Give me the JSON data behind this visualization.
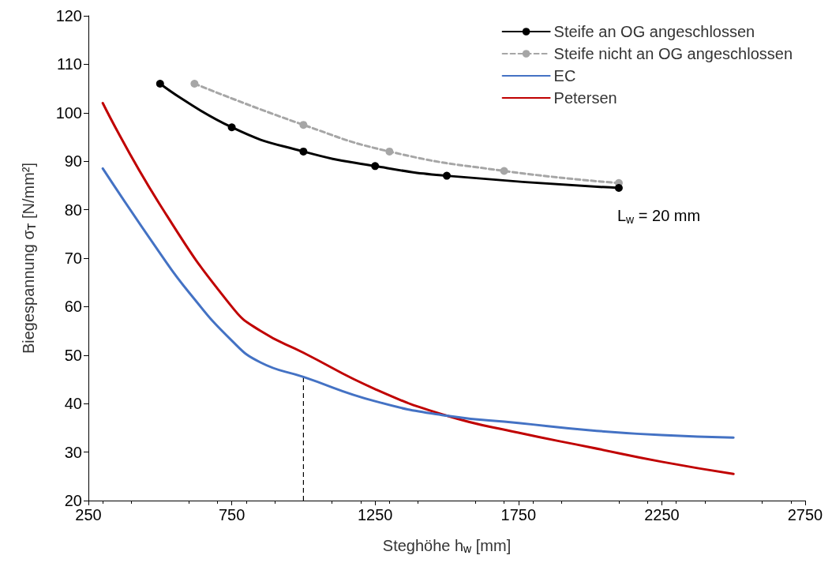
{
  "chart_data": {
    "type": "line",
    "xlabel": "Steghöhe h$_{w}$ [mm]",
    "ylabel": "Biegespannung σ$_{T}$ [N/mm²]",
    "xlim": [
      250,
      2750
    ],
    "xticks": [
      250,
      750,
      1250,
      1750,
      2250,
      2750
    ],
    "ylim": [
      20,
      120
    ],
    "yticks": [
      20,
      30,
      40,
      50,
      60,
      70,
      80,
      90,
      100,
      110,
      120
    ],
    "grid": false,
    "legend": "top right",
    "series": [
      {
        "name": "Steife an OG angeschlossen",
        "color": "#000000",
        "marker": "circle",
        "line_style": "solid",
        "x": [
          500,
          750,
          1000,
          1250,
          1500,
          2100
        ],
        "values": [
          106,
          97,
          92,
          89,
          87,
          84.5
        ]
      },
      {
        "name": "Steife nicht an OG angeschlossen",
        "color": "#a6a6a6",
        "marker": "circle",
        "line_style": "dashed",
        "x": [
          620,
          1000,
          1300,
          1700,
          2100
        ],
        "values": [
          106,
          97.5,
          92,
          88,
          85.5
        ]
      },
      {
        "name": "EC",
        "color": "#4472c4",
        "marker": "none",
        "line_style": "solid",
        "x": [
          300,
          500,
          600,
          750,
          850,
          1000,
          1250,
          1500,
          1750,
          2000,
          2250,
          2500
        ],
        "values": [
          88.5,
          71,
          63,
          53,
          48.5,
          45.5,
          40.5,
          37.5,
          36,
          34.5,
          33.5,
          33
        ]
      },
      {
        "name": "Petersen",
        "color": "#c00000",
        "marker": "none",
        "line_style": "solid",
        "x": [
          300,
          500,
          750,
          850,
          1000,
          1250,
          1500,
          1750,
          2000,
          2250,
          2500
        ],
        "values": [
          102,
          81,
          60,
          55,
          50.5,
          43,
          37.5,
          34,
          31,
          28,
          25.5
        ]
      }
    ],
    "ref_lines": [
      {
        "axis": "x",
        "value": 1000,
        "label": null,
        "line_style": "dashed",
        "color": "#000000"
      }
    ],
    "annotations": [
      "L$_{w}$ = 20 mm"
    ]
  }
}
